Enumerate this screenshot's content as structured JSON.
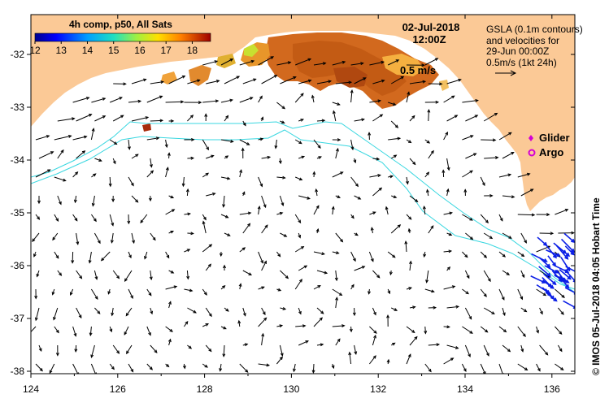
{
  "colorbar": {
    "title": "4h comp, p50, All Sats",
    "ticks": [
      "12",
      "13",
      "14",
      "15",
      "16",
      "17",
      "18"
    ],
    "range": [
      12,
      18.7
    ]
  },
  "header": {
    "date": "02-Jul-2018",
    "time": "12:00Z"
  },
  "gsla_note": {
    "line1": "GSLA (0.1m contours)",
    "line2": "and velocities for",
    "line3": "29-Jun 00:00Z",
    "line4": "0.5m/s (1kt 24h)"
  },
  "arrow_scale_label": "0.5 m/s",
  "legend": {
    "glider": "Glider",
    "argo": "Argo"
  },
  "credit": "© IMOS 05-Jul-2018 04:05 Hobart Time",
  "axes": {
    "x_ticks": [
      "124",
      "126",
      "128",
      "130",
      "132",
      "134",
      "136"
    ],
    "y_ticks": [
      "-32",
      "-33",
      "-34",
      "-35",
      "-36",
      "-37",
      "-38"
    ]
  },
  "colors": {
    "land": "#fbc996",
    "contour": "#39d7e0",
    "arrows": "#000000",
    "glider_vectors": "#0a1ee6",
    "glider_marker": "#d400d4",
    "argo_marker": "#d400d4"
  }
}
